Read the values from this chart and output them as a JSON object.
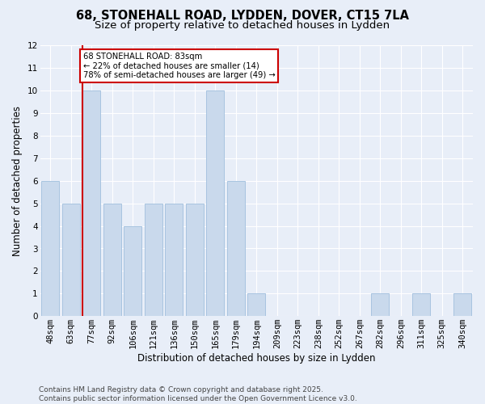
{
  "title_line1": "68, STONEHALL ROAD, LYDDEN, DOVER, CT15 7LA",
  "title_line2": "Size of property relative to detached houses in Lydden",
  "xlabel": "Distribution of detached houses by size in Lydden",
  "ylabel": "Number of detached properties",
  "categories": [
    "48sqm",
    "63sqm",
    "77sqm",
    "92sqm",
    "106sqm",
    "121sqm",
    "136sqm",
    "150sqm",
    "165sqm",
    "179sqm",
    "194sqm",
    "209sqm",
    "223sqm",
    "238sqm",
    "252sqm",
    "267sqm",
    "282sqm",
    "296sqm",
    "311sqm",
    "325sqm",
    "340sqm"
  ],
  "values": [
    6,
    5,
    10,
    5,
    4,
    5,
    5,
    5,
    10,
    6,
    1,
    0,
    0,
    0,
    0,
    0,
    1,
    0,
    1,
    0,
    1
  ],
  "bar_color": "#c9d9ec",
  "bar_edge_color": "#a8c4e0",
  "red_line_x": 2,
  "annotation_text": "68 STONEHALL ROAD: 83sqm\n← 22% of detached houses are smaller (14)\n78% of semi-detached houses are larger (49) →",
  "annotation_box_color": "#ffffff",
  "annotation_box_edge_color": "#cc0000",
  "ylim": [
    0,
    12
  ],
  "yticks": [
    0,
    1,
    2,
    3,
    4,
    5,
    6,
    7,
    8,
    9,
    10,
    11,
    12
  ],
  "footer_text": "Contains HM Land Registry data © Crown copyright and database right 2025.\nContains public sector information licensed under the Open Government Licence v3.0.",
  "bg_color": "#e8eef8",
  "plot_bg_color": "#e8eef8",
  "grid_color": "#ffffff",
  "title_fontsize": 10.5,
  "subtitle_fontsize": 9.5,
  "axis_label_fontsize": 8.5,
  "tick_fontsize": 7.5,
  "footer_fontsize": 6.5
}
